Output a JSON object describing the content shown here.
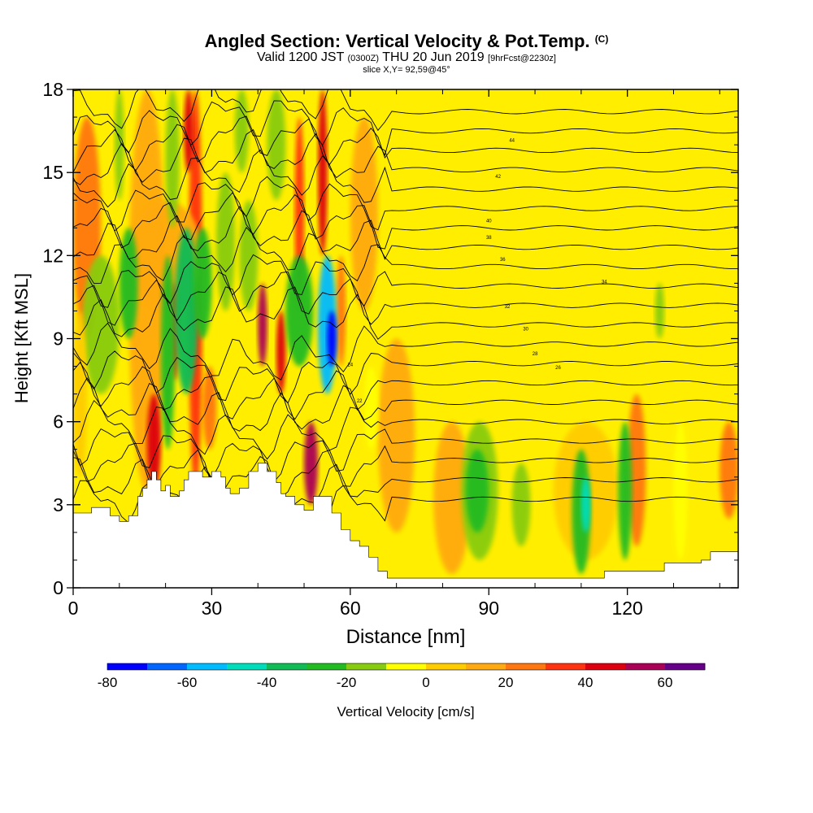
{
  "chart_data": {
    "type": "heatmap",
    "title": "Angled Section: Vertical Velocity & Pot.Temp.",
    "title_unit": "(C)",
    "subtitle_main": "Valid 1200 JST",
    "subtitle_utc": "(0300Z)",
    "subtitle_date": "THU 20 Jun 2019",
    "subtitle_fcst": "[9hrFcst@2230z]",
    "slice_label": "slice X,Y= 92,59@45°",
    "xlabel": "Distance [nm]",
    "ylabel": "Height [Kft MSL]",
    "xlim": [
      0,
      144
    ],
    "ylim": [
      0,
      18
    ],
    "x_ticks": [
      "0",
      "30",
      "60",
      "90",
      "120"
    ],
    "x_tick_values": [
      0,
      30,
      60,
      90,
      120
    ],
    "y_ticks": [
      "0",
      "3",
      "6",
      "9",
      "12",
      "15",
      "18"
    ],
    "y_tick_values": [
      0,
      3,
      6,
      9,
      12,
      15,
      18
    ],
    "colorbar": {
      "label": "Vertical Velocity [cm/s]",
      "tick_labels": [
        "-80",
        "-60",
        "-40",
        "-20",
        "0",
        "20",
        "40",
        "60"
      ],
      "tick_values": [
        -80,
        -60,
        -40,
        -20,
        0,
        20,
        40,
        60
      ],
      "range": [
        -80,
        70
      ],
      "colors": [
        "#0000ff",
        "#0066ff",
        "#00bbff",
        "#00ddbb",
        "#11bb55",
        "#22bb22",
        "#88cc11",
        "#ffff00",
        "#ffcc00",
        "#ffaa11",
        "#ff7711",
        "#ff3311",
        "#dd0011",
        "#aa0055",
        "#660088"
      ]
    },
    "theta_labels": [
      "44",
      "42",
      "40",
      "38",
      "36",
      "34",
      "32",
      "30",
      "28",
      "26",
      "24",
      "22"
    ],
    "terrain": [
      [
        0,
        2.7
      ],
      [
        4,
        2.9
      ],
      [
        8,
        2.6
      ],
      [
        10,
        2.4
      ],
      [
        12,
        2.6
      ],
      [
        14,
        3.3
      ],
      [
        15,
        3.6
      ],
      [
        16,
        3.9
      ],
      [
        17,
        4.2
      ],
      [
        18,
        3.9
      ],
      [
        19,
        3.5
      ],
      [
        20,
        3.7
      ],
      [
        21,
        3.3
      ],
      [
        23,
        3.5
      ],
      [
        24,
        3.9
      ],
      [
        25,
        4.2
      ],
      [
        26,
        4.2
      ],
      [
        28,
        4.0
      ],
      [
        30,
        4.2
      ],
      [
        32,
        4.0
      ],
      [
        33,
        3.6
      ],
      [
        34,
        3.4
      ],
      [
        36,
        3.6
      ],
      [
        38,
        4.2
      ],
      [
        40,
        4.5
      ],
      [
        42,
        4.2
      ],
      [
        44,
        3.8
      ],
      [
        45,
        3.4
      ],
      [
        46,
        3.3
      ],
      [
        48,
        3.0
      ],
      [
        50,
        2.8
      ],
      [
        52,
        3.3
      ],
      [
        54,
        3.3
      ],
      [
        56,
        2.7
      ],
      [
        58,
        2.1
      ],
      [
        60,
        1.7
      ],
      [
        62,
        1.5
      ],
      [
        64,
        1.1
      ],
      [
        66,
        0.6
      ],
      [
        68,
        0.35
      ],
      [
        80,
        0.35
      ],
      [
        100,
        0.35
      ],
      [
        114,
        0.35
      ],
      [
        115,
        0.6
      ],
      [
        126,
        0.6
      ],
      [
        128,
        0.9
      ],
      [
        136,
        1.0
      ],
      [
        138,
        1.3
      ],
      [
        144,
        1.3
      ]
    ]
  }
}
